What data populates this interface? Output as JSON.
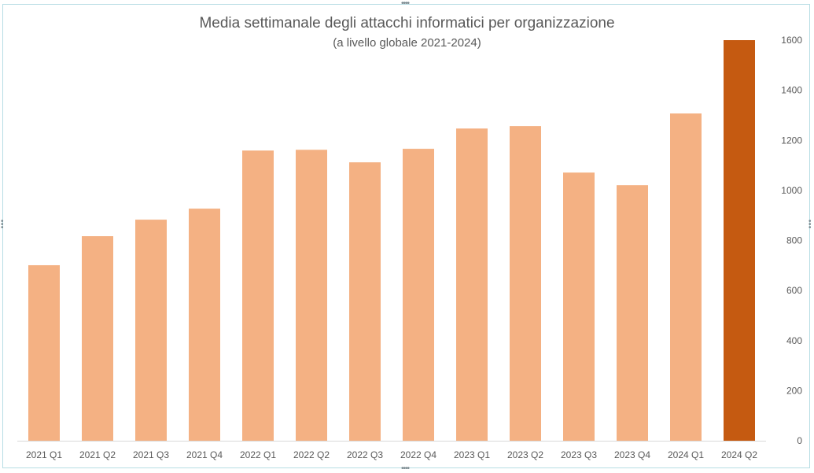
{
  "chart_data": {
    "type": "bar",
    "title": "Media settimanale degli attacchi informatici per organizzazione",
    "subtitle": "(a livello globale 2021-2024)",
    "xlabel": "",
    "ylabel": "",
    "categories": [
      "2021 Q1",
      "2021 Q2",
      "2021 Q3",
      "2021 Q4",
      "2022 Q1",
      "2022 Q2",
      "2022 Q3",
      "2022 Q4",
      "2023 Q1",
      "2023 Q2",
      "2023 Q3",
      "2023 Q4",
      "2024 Q1",
      "2024 Q2"
    ],
    "values": [
      701,
      817,
      883,
      927,
      1159,
      1162,
      1112,
      1166,
      1247,
      1257,
      1071,
      1021,
      1307,
      1600
    ],
    "ylim": [
      0,
      1600
    ],
    "yticks": [
      0,
      200,
      400,
      600,
      800,
      1000,
      1200,
      1400,
      1600
    ],
    "y_axis_side": "right",
    "grid": false,
    "colors": {
      "bar": "#f4b183",
      "highlight": "#c55a11"
    },
    "highlight_index": 13
  }
}
